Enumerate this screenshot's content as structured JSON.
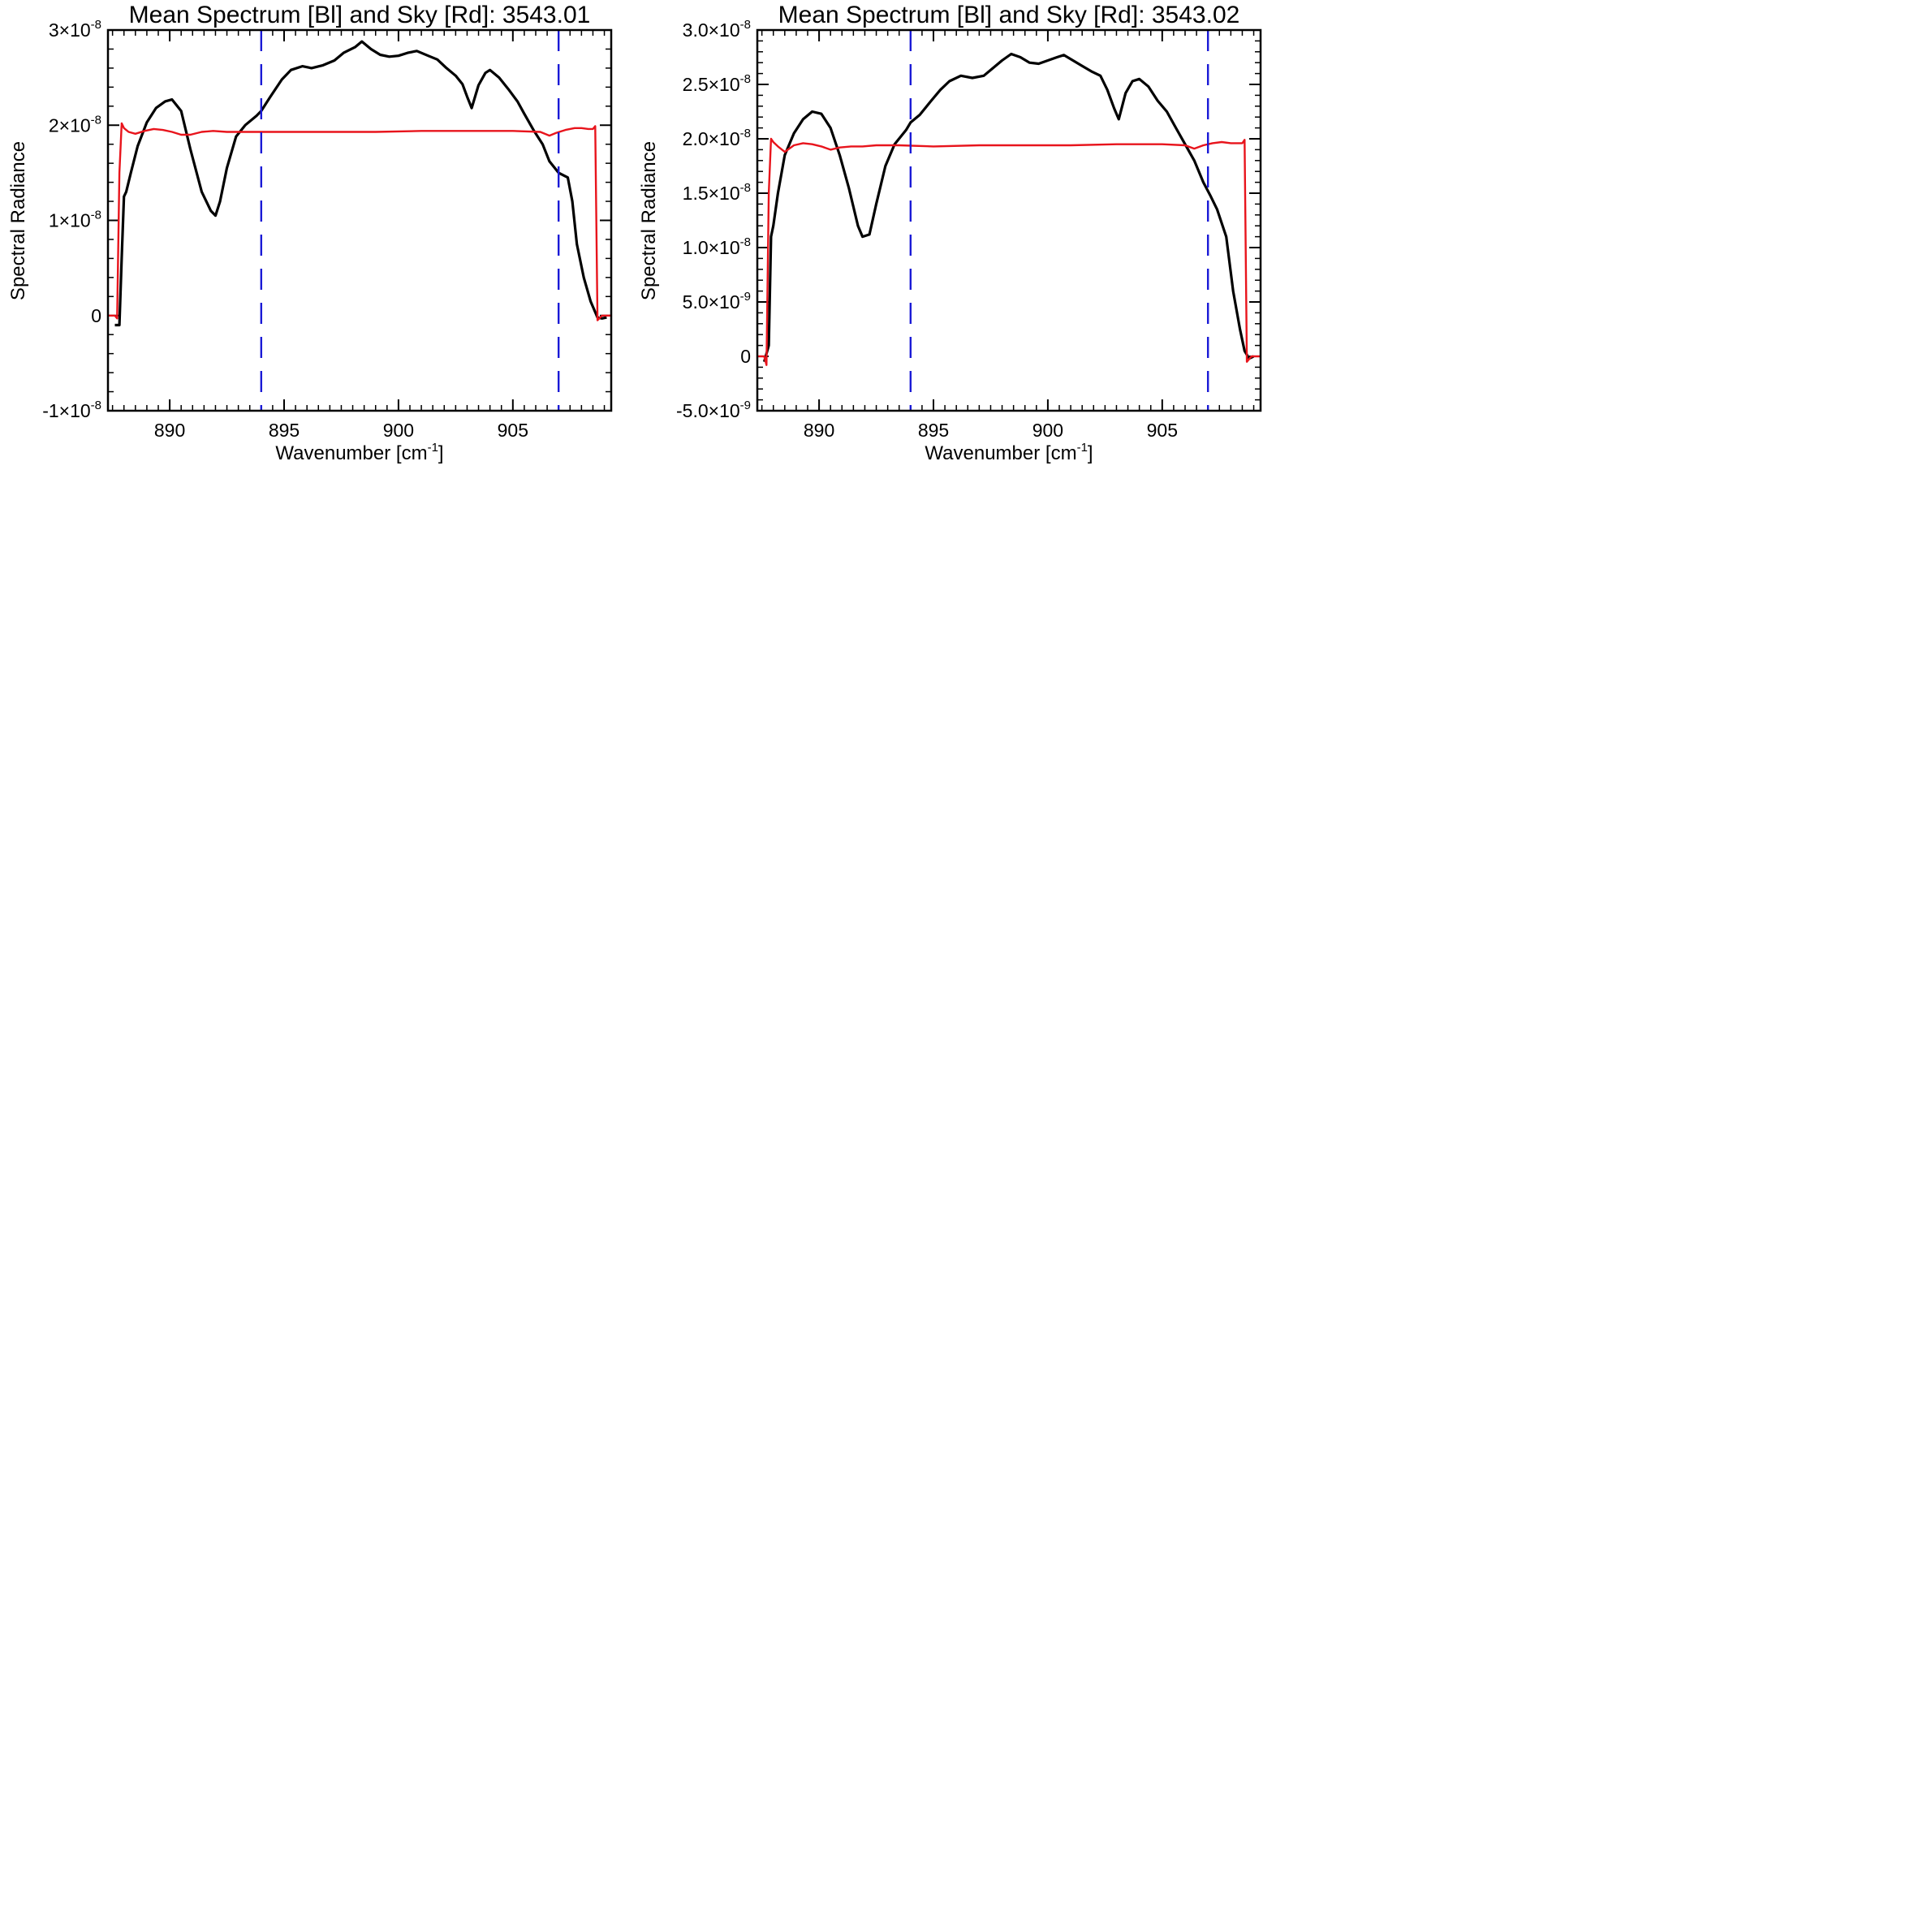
{
  "chart_data": [
    {
      "type": "line",
      "title": "Mean Spectrum [Bl] and Sky [Rd]: 3543.01",
      "xlabel": {
        "base": "Wavenumber [cm",
        "sup": "-1",
        "tail": "]"
      },
      "ylabel": "Spectral Radiance",
      "xlim": [
        887.3,
        909.3
      ],
      "ylim": [
        -1e-08,
        3e-08
      ],
      "x_ticks": [
        {
          "value": 890,
          "label": "890"
        },
        {
          "value": 895,
          "label": "895"
        },
        {
          "value": 900,
          "label": "900"
        },
        {
          "value": 905,
          "label": "905"
        }
      ],
      "y_ticks": [
        {
          "value": -1e-08,
          "label": "-1×10",
          "sup": "-8"
        },
        {
          "value": 0,
          "label": "0",
          "sup": ""
        },
        {
          "value": 1e-08,
          "label": "1×10",
          "sup": "-8"
        },
        {
          "value": 2e-08,
          "label": "2×10",
          "sup": "-8"
        },
        {
          "value": 3e-08,
          "label": "3×10",
          "sup": "-8"
        }
      ],
      "vlines": [
        {
          "x": 894.0,
          "color": "#1a1ad6",
          "style": "dashed"
        },
        {
          "x": 907.0,
          "color": "#1a1ad6",
          "style": "dashed"
        }
      ],
      "series": [
        {
          "color": "#000000",
          "x": [
            887.6,
            887.8,
            887.9,
            888.0,
            888.1,
            888.3,
            888.6,
            889.0,
            889.4,
            889.8,
            890.1,
            890.5,
            890.9,
            891.4,
            891.8,
            892.0,
            892.2,
            892.5,
            892.9,
            893.3,
            893.8,
            894.0,
            894.4,
            894.9,
            895.3,
            895.8,
            896.2,
            896.7,
            897.2,
            897.6,
            898.1,
            898.4,
            898.8,
            899.2,
            899.6,
            900.0,
            900.4,
            900.8,
            901.3,
            901.7,
            902.1,
            902.5,
            902.8,
            903.0,
            903.2,
            903.5,
            903.8,
            904.0,
            904.4,
            904.8,
            905.2,
            905.5,
            905.9,
            906.3,
            906.6,
            907.0,
            907.4,
            907.6,
            907.8,
            908.1,
            908.4,
            908.7,
            908.9,
            909.1
          ],
          "y": [
            -1e-09,
            -1e-09,
            6e-09,
            1.25e-08,
            1.3e-08,
            1.5e-08,
            1.78e-08,
            2.03e-08,
            2.18e-08,
            2.25e-08,
            2.27e-08,
            2.15e-08,
            1.75e-08,
            1.3e-08,
            1.1e-08,
            1.05e-08,
            1.2e-08,
            1.55e-08,
            1.88e-08,
            2e-08,
            2.1e-08,
            2.15e-08,
            2.3e-08,
            2.48e-08,
            2.58e-08,
            2.62e-08,
            2.6e-08,
            2.63e-08,
            2.68e-08,
            2.76e-08,
            2.82e-08,
            2.88e-08,
            2.8e-08,
            2.74e-08,
            2.72e-08,
            2.73e-08,
            2.76e-08,
            2.78e-08,
            2.73e-08,
            2.69e-08,
            2.6e-08,
            2.52e-08,
            2.43e-08,
            2.3e-08,
            2.18e-08,
            2.42e-08,
            2.55e-08,
            2.58e-08,
            2.5e-08,
            2.38e-08,
            2.25e-08,
            2.12e-08,
            1.95e-08,
            1.8e-08,
            1.62e-08,
            1.5e-08,
            1.45e-08,
            1.2e-08,
            7.5e-09,
            4e-09,
            1.5e-09,
            -2e-10,
            -3e-10,
            -2e-10
          ]
        },
        {
          "color": "#e8141c",
          "x": [
            887.3,
            887.6,
            887.7,
            887.8,
            887.9,
            888.0,
            888.2,
            888.5,
            888.9,
            889.3,
            889.7,
            890.1,
            890.5,
            890.9,
            891.4,
            891.9,
            892.5,
            893.5,
            895.0,
            897.0,
            899.0,
            901.0,
            903.0,
            905.0,
            906.2,
            906.6,
            906.9,
            907.3,
            907.7,
            908.0,
            908.3,
            908.5,
            908.6,
            908.7,
            908.9,
            909.3
          ],
          "y": [
            0.0,
            0.0,
            -3e-10,
            1.5e-08,
            2.02e-08,
            1.97e-08,
            1.93e-08,
            1.91e-08,
            1.94e-08,
            1.96e-08,
            1.95e-08,
            1.93e-08,
            1.9e-08,
            1.9e-08,
            1.93e-08,
            1.94e-08,
            1.93e-08,
            1.93e-08,
            1.93e-08,
            1.93e-08,
            1.93e-08,
            1.94e-08,
            1.94e-08,
            1.94e-08,
            1.93e-08,
            1.89e-08,
            1.92e-08,
            1.95e-08,
            1.97e-08,
            1.97e-08,
            1.96e-08,
            1.96e-08,
            1.99e-08,
            -5e-10,
            0.0,
            0.0
          ]
        }
      ]
    },
    {
      "type": "line",
      "title": "Mean Spectrum [Bl] and Sky [Rd]: 3543.02",
      "xlabel": {
        "base": "Wavenumber [cm",
        "sup": "-1",
        "tail": "]"
      },
      "ylabel": "Spectral Radiance",
      "xlim": [
        887.3,
        909.3
      ],
      "ylim": [
        -5e-09,
        3e-08
      ],
      "x_ticks": [
        {
          "value": 890,
          "label": "890"
        },
        {
          "value": 895,
          "label": "895"
        },
        {
          "value": 900,
          "label": "900"
        },
        {
          "value": 905,
          "label": "905"
        }
      ],
      "y_ticks": [
        {
          "value": -5e-09,
          "label": "-5.0×10",
          "sup": "-9"
        },
        {
          "value": 0,
          "label": "0",
          "sup": ""
        },
        {
          "value": 5e-09,
          "label": "5.0×10",
          "sup": "-9"
        },
        {
          "value": 1e-08,
          "label": "1.0×10",
          "sup": "-8"
        },
        {
          "value": 1.5e-08,
          "label": "1.5×10",
          "sup": "-8"
        },
        {
          "value": 2e-08,
          "label": "2.0×10",
          "sup": "-8"
        },
        {
          "value": 2.5e-08,
          "label": "2.5×10",
          "sup": "-8"
        },
        {
          "value": 3e-08,
          "label": "3.0×10",
          "sup": "-8"
        }
      ],
      "vlines": [
        {
          "x": 894.0,
          "color": "#1a1ad6",
          "style": "dashed"
        },
        {
          "x": 907.0,
          "color": "#1a1ad6",
          "style": "dashed"
        }
      ],
      "series": [
        {
          "color": "#000000",
          "x": [
            887.6,
            887.8,
            887.9,
            888.0,
            888.2,
            888.5,
            888.9,
            889.3,
            889.7,
            890.1,
            890.5,
            890.9,
            891.3,
            891.7,
            891.9,
            892.2,
            892.5,
            892.9,
            893.3,
            893.8,
            894.0,
            894.4,
            894.9,
            895.3,
            895.7,
            896.2,
            896.7,
            897.2,
            897.6,
            898.0,
            898.4,
            898.8,
            899.2,
            899.6,
            900.0,
            900.4,
            900.7,
            901.1,
            901.5,
            901.9,
            902.3,
            902.6,
            902.9,
            903.1,
            903.4,
            903.7,
            904.0,
            904.4,
            904.8,
            905.2,
            905.6,
            906.0,
            906.4,
            906.8,
            907.1,
            907.4,
            907.8,
            908.1,
            908.4,
            908.6,
            908.8,
            909.0
          ],
          "y": [
            -5e-10,
            1e-09,
            1.1e-08,
            1.2e-08,
            1.5e-08,
            1.85e-08,
            2.05e-08,
            2.18e-08,
            2.25e-08,
            2.23e-08,
            2.1e-08,
            1.85e-08,
            1.55e-08,
            1.2e-08,
            1.1e-08,
            1.12e-08,
            1.4e-08,
            1.75e-08,
            1.95e-08,
            2.08e-08,
            2.15e-08,
            2.22e-08,
            2.35e-08,
            2.45e-08,
            2.53e-08,
            2.58e-08,
            2.56e-08,
            2.58e-08,
            2.65e-08,
            2.72e-08,
            2.78e-08,
            2.75e-08,
            2.7e-08,
            2.69e-08,
            2.72e-08,
            2.75e-08,
            2.77e-08,
            2.72e-08,
            2.67e-08,
            2.62e-08,
            2.58e-08,
            2.45e-08,
            2.28e-08,
            2.18e-08,
            2.42e-08,
            2.53e-08,
            2.55e-08,
            2.48e-08,
            2.35e-08,
            2.25e-08,
            2.1e-08,
            1.95e-08,
            1.8e-08,
            1.6e-08,
            1.48e-08,
            1.35e-08,
            1.1e-08,
            6e-09,
            2.5e-09,
            5e-10,
            -2e-10,
            0.0
          ]
        },
        {
          "color": "#e8141c",
          "x": [
            887.3,
            887.6,
            887.7,
            887.8,
            887.9,
            888.0,
            888.2,
            888.5,
            888.9,
            889.3,
            889.7,
            890.1,
            890.5,
            890.9,
            891.4,
            891.9,
            892.5,
            893.5,
            895.0,
            897.0,
            899.0,
            901.0,
            903.0,
            905.0,
            906.0,
            906.4,
            906.8,
            907.2,
            907.6,
            908.0,
            908.3,
            908.5,
            908.6,
            908.7,
            908.9,
            909.3
          ],
          "y": [
            0.0,
            0.0,
            -8e-10,
            1.5e-08,
            2e-08,
            1.97e-08,
            1.93e-08,
            1.88e-08,
            1.94e-08,
            1.96e-08,
            1.95e-08,
            1.93e-08,
            1.9e-08,
            1.92e-08,
            1.93e-08,
            1.93e-08,
            1.94e-08,
            1.94e-08,
            1.93e-08,
            1.94e-08,
            1.94e-08,
            1.94e-08,
            1.95e-08,
            1.95e-08,
            1.94e-08,
            1.91e-08,
            1.94e-08,
            1.96e-08,
            1.97e-08,
            1.96e-08,
            1.96e-08,
            1.96e-08,
            1.99e-08,
            -5e-10,
            0.0,
            0.0
          ]
        }
      ]
    }
  ]
}
